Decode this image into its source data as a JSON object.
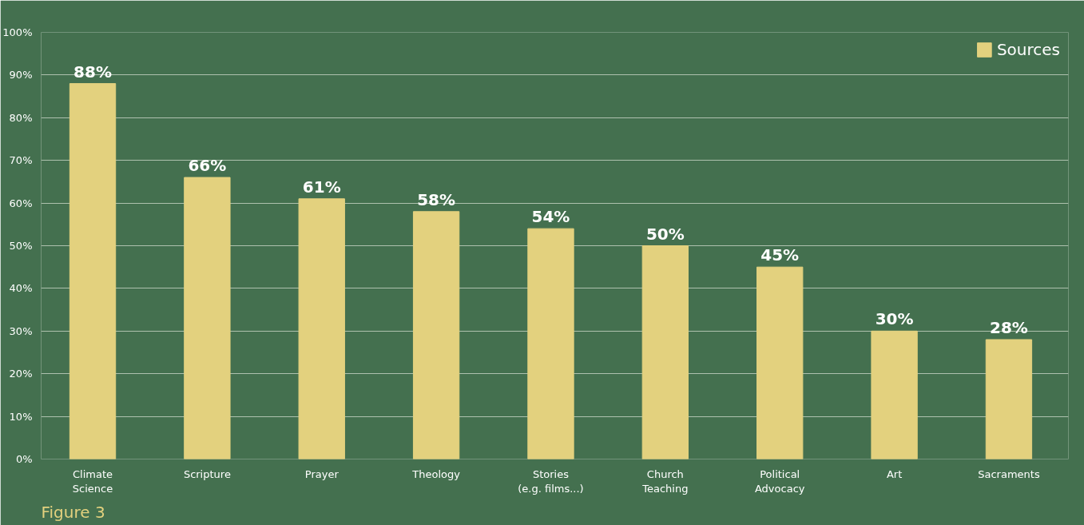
{
  "chart_data": {
    "type": "bar",
    "categories": [
      "Climate\nScience",
      "Scripture",
      "Prayer",
      "Theology",
      "Stories\n(e.g. films...)",
      "Church\nTeaching",
      "Political\nAdvocacy",
      "Art",
      "Sacraments"
    ],
    "series": [
      {
        "name": "Sources",
        "color": "#e3d17e",
        "values": [
          88,
          66,
          61,
          58,
          54,
          50,
          45,
          30,
          28
        ]
      }
    ],
    "value_labels": [
      "88%",
      "66%",
      "61%",
      "58%",
      "54%",
      "50%",
      "45%",
      "30%",
      "28%"
    ],
    "ylim": [
      0,
      100
    ],
    "yticks": [
      {
        "value": 0,
        "label": "0%"
      },
      {
        "value": 10,
        "label": "10%"
      },
      {
        "value": 20,
        "label": "20%"
      },
      {
        "value": 30,
        "label": "30%"
      },
      {
        "value": 40,
        "label": "40%"
      },
      {
        "value": 50,
        "label": "50%"
      },
      {
        "value": 60,
        "label": "60%"
      },
      {
        "value": 70,
        "label": "70%"
      },
      {
        "value": 80,
        "label": "80%"
      },
      {
        "value": 90,
        "label": "90%"
      },
      {
        "value": 100,
        "label": "100%"
      }
    ],
    "grid": "y",
    "legend": "top right",
    "annotations": [
      "Figure 3"
    ]
  }
}
